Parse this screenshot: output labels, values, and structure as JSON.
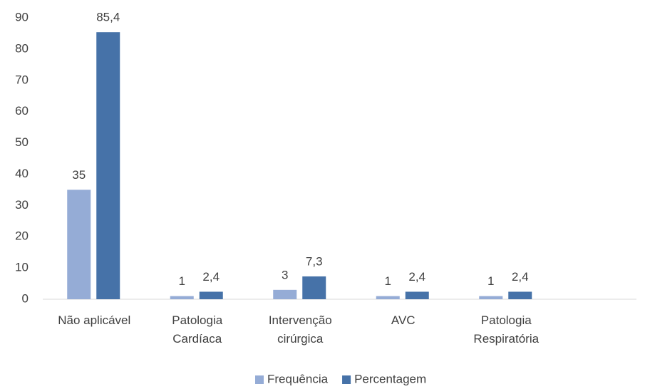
{
  "chart_data": {
    "type": "bar",
    "categories": [
      "Não aplicável",
      "Patologia Cardíaca",
      "Intervenção cirúrgica",
      "AVC",
      "Patologia Respiratória"
    ],
    "series": [
      {
        "name": "Frequência",
        "color": "#95acd6",
        "values": [
          35,
          1,
          3,
          1,
          1
        ]
      },
      {
        "name": "Percentagem",
        "color": "#4672a8",
        "values": [
          85.4,
          2.4,
          7.3,
          2.4,
          2.4
        ],
        "value_labels": [
          "85,4",
          "2,4",
          "7,3",
          "2,4",
          "2,4"
        ]
      }
    ],
    "ylim": [
      0,
      90
    ],
    "yticks": [
      0,
      10,
      20,
      30,
      40,
      50,
      60,
      70,
      80,
      90
    ],
    "grid": false,
    "legend": "bottom"
  }
}
